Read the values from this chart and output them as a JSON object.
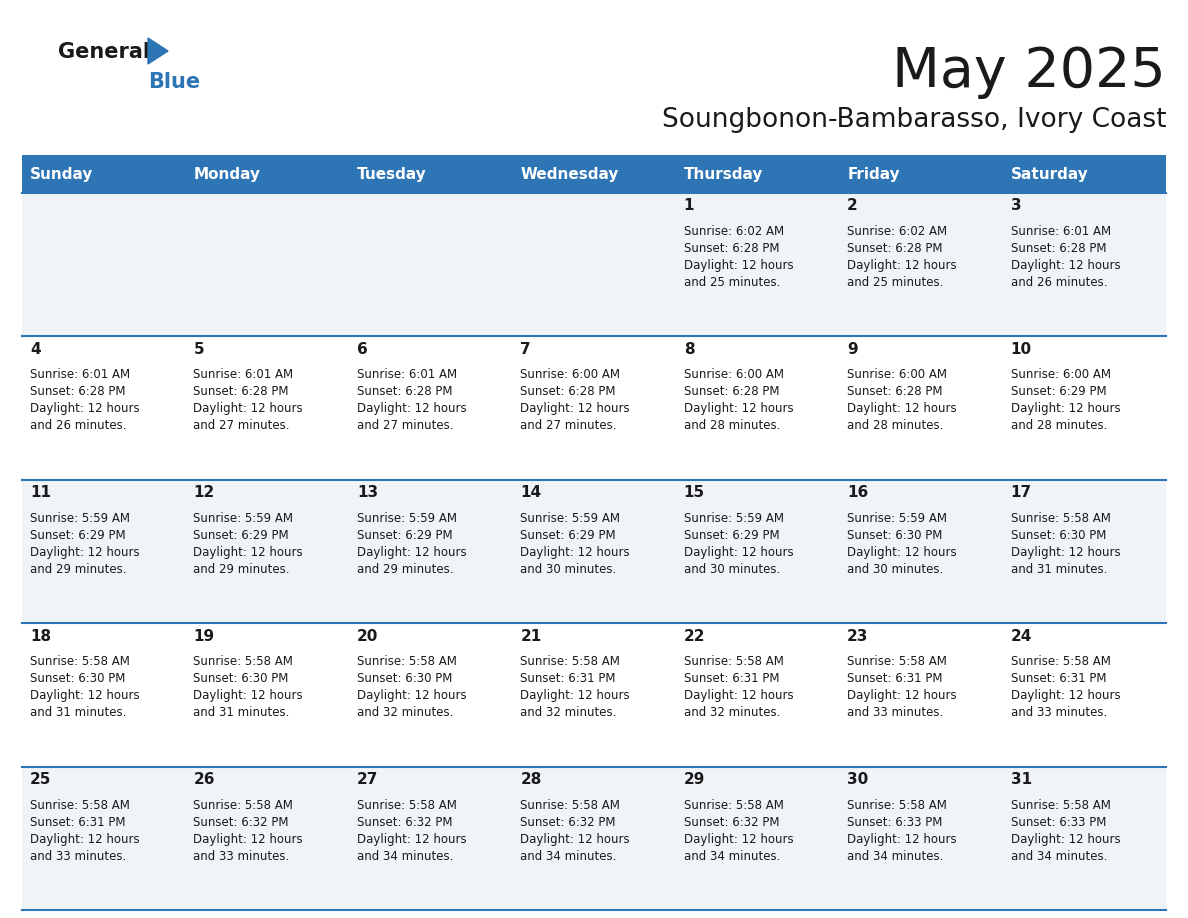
{
  "title": "May 2025",
  "subtitle": "Soungbonon-Bambarasso, Ivory Coast",
  "header_color": "#2E75B6",
  "header_text_color": "#FFFFFF",
  "day_names": [
    "Sunday",
    "Monday",
    "Tuesday",
    "Wednesday",
    "Thursday",
    "Friday",
    "Saturday"
  ],
  "cell_bg_even": "#F0F4F8",
  "cell_bg_odd": "#FFFFFF",
  "row_line_color": "#2E75B6",
  "days": [
    {
      "day": 1,
      "col": 4,
      "row": 0,
      "sunrise": "6:02 AM",
      "sunset": "6:28 PM",
      "daylight": "12 hours and 25 minutes."
    },
    {
      "day": 2,
      "col": 5,
      "row": 0,
      "sunrise": "6:02 AM",
      "sunset": "6:28 PM",
      "daylight": "12 hours and 25 minutes."
    },
    {
      "day": 3,
      "col": 6,
      "row": 0,
      "sunrise": "6:01 AM",
      "sunset": "6:28 PM",
      "daylight": "12 hours and 26 minutes."
    },
    {
      "day": 4,
      "col": 0,
      "row": 1,
      "sunrise": "6:01 AM",
      "sunset": "6:28 PM",
      "daylight": "12 hours and 26 minutes."
    },
    {
      "day": 5,
      "col": 1,
      "row": 1,
      "sunrise": "6:01 AM",
      "sunset": "6:28 PM",
      "daylight": "12 hours and 27 minutes."
    },
    {
      "day": 6,
      "col": 2,
      "row": 1,
      "sunrise": "6:01 AM",
      "sunset": "6:28 PM",
      "daylight": "12 hours and 27 minutes."
    },
    {
      "day": 7,
      "col": 3,
      "row": 1,
      "sunrise": "6:00 AM",
      "sunset": "6:28 PM",
      "daylight": "12 hours and 27 minutes."
    },
    {
      "day": 8,
      "col": 4,
      "row": 1,
      "sunrise": "6:00 AM",
      "sunset": "6:28 PM",
      "daylight": "12 hours and 28 minutes."
    },
    {
      "day": 9,
      "col": 5,
      "row": 1,
      "sunrise": "6:00 AM",
      "sunset": "6:28 PM",
      "daylight": "12 hours and 28 minutes."
    },
    {
      "day": 10,
      "col": 6,
      "row": 1,
      "sunrise": "6:00 AM",
      "sunset": "6:29 PM",
      "daylight": "12 hours and 28 minutes."
    },
    {
      "day": 11,
      "col": 0,
      "row": 2,
      "sunrise": "5:59 AM",
      "sunset": "6:29 PM",
      "daylight": "12 hours and 29 minutes."
    },
    {
      "day": 12,
      "col": 1,
      "row": 2,
      "sunrise": "5:59 AM",
      "sunset": "6:29 PM",
      "daylight": "12 hours and 29 minutes."
    },
    {
      "day": 13,
      "col": 2,
      "row": 2,
      "sunrise": "5:59 AM",
      "sunset": "6:29 PM",
      "daylight": "12 hours and 29 minutes."
    },
    {
      "day": 14,
      "col": 3,
      "row": 2,
      "sunrise": "5:59 AM",
      "sunset": "6:29 PM",
      "daylight": "12 hours and 30 minutes."
    },
    {
      "day": 15,
      "col": 4,
      "row": 2,
      "sunrise": "5:59 AM",
      "sunset": "6:29 PM",
      "daylight": "12 hours and 30 minutes."
    },
    {
      "day": 16,
      "col": 5,
      "row": 2,
      "sunrise": "5:59 AM",
      "sunset": "6:30 PM",
      "daylight": "12 hours and 30 minutes."
    },
    {
      "day": 17,
      "col": 6,
      "row": 2,
      "sunrise": "5:58 AM",
      "sunset": "6:30 PM",
      "daylight": "12 hours and 31 minutes."
    },
    {
      "day": 18,
      "col": 0,
      "row": 3,
      "sunrise": "5:58 AM",
      "sunset": "6:30 PM",
      "daylight": "12 hours and 31 minutes."
    },
    {
      "day": 19,
      "col": 1,
      "row": 3,
      "sunrise": "5:58 AM",
      "sunset": "6:30 PM",
      "daylight": "12 hours and 31 minutes."
    },
    {
      "day": 20,
      "col": 2,
      "row": 3,
      "sunrise": "5:58 AM",
      "sunset": "6:30 PM",
      "daylight": "12 hours and 32 minutes."
    },
    {
      "day": 21,
      "col": 3,
      "row": 3,
      "sunrise": "5:58 AM",
      "sunset": "6:31 PM",
      "daylight": "12 hours and 32 minutes."
    },
    {
      "day": 22,
      "col": 4,
      "row": 3,
      "sunrise": "5:58 AM",
      "sunset": "6:31 PM",
      "daylight": "12 hours and 32 minutes."
    },
    {
      "day": 23,
      "col": 5,
      "row": 3,
      "sunrise": "5:58 AM",
      "sunset": "6:31 PM",
      "daylight": "12 hours and 33 minutes."
    },
    {
      "day": 24,
      "col": 6,
      "row": 3,
      "sunrise": "5:58 AM",
      "sunset": "6:31 PM",
      "daylight": "12 hours and 33 minutes."
    },
    {
      "day": 25,
      "col": 0,
      "row": 4,
      "sunrise": "5:58 AM",
      "sunset": "6:31 PM",
      "daylight": "12 hours and 33 minutes."
    },
    {
      "day": 26,
      "col": 1,
      "row": 4,
      "sunrise": "5:58 AM",
      "sunset": "6:32 PM",
      "daylight": "12 hours and 33 minutes."
    },
    {
      "day": 27,
      "col": 2,
      "row": 4,
      "sunrise": "5:58 AM",
      "sunset": "6:32 PM",
      "daylight": "12 hours and 34 minutes."
    },
    {
      "day": 28,
      "col": 3,
      "row": 4,
      "sunrise": "5:58 AM",
      "sunset": "6:32 PM",
      "daylight": "12 hours and 34 minutes."
    },
    {
      "day": 29,
      "col": 4,
      "row": 4,
      "sunrise": "5:58 AM",
      "sunset": "6:32 PM",
      "daylight": "12 hours and 34 minutes."
    },
    {
      "day": 30,
      "col": 5,
      "row": 4,
      "sunrise": "5:58 AM",
      "sunset": "6:33 PM",
      "daylight": "12 hours and 34 minutes."
    },
    {
      "day": 31,
      "col": 6,
      "row": 4,
      "sunrise": "5:58 AM",
      "sunset": "6:33 PM",
      "daylight": "12 hours and 34 minutes."
    }
  ]
}
